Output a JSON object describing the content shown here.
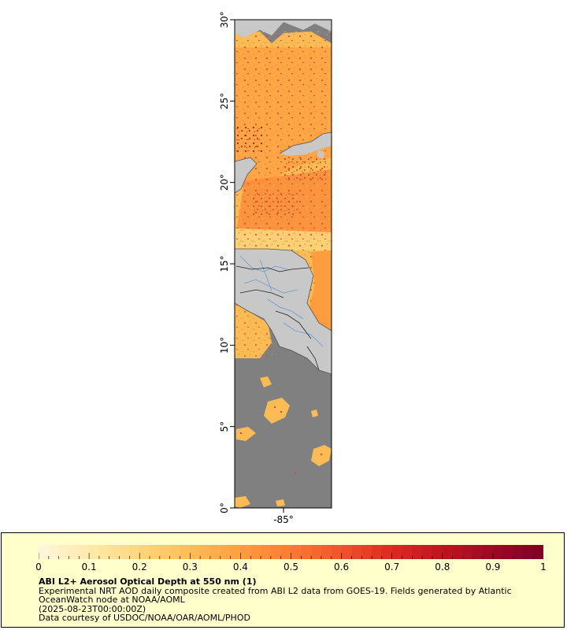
{
  "map": {
    "lat_ticks": [
      "0°",
      "5°",
      "10°",
      "15°",
      "20°",
      "25°",
      "30°"
    ],
    "lon_tick": "-85°",
    "lat_range": [
      0,
      30
    ],
    "colors": {
      "land": "#c8c8c8",
      "no_data": "#808080",
      "coast": "#555555",
      "river": "#6a9ad6",
      "border": "#000000"
    }
  },
  "colorbar": {
    "labels": [
      "0",
      "0.1",
      "0.2",
      "0.3",
      "0.4",
      "0.5",
      "0.6",
      "0.7",
      "0.8",
      "0.9",
      "1"
    ],
    "range": [
      0,
      1
    ],
    "colors": [
      "#fff5d8",
      "#ffe9a8",
      "#fed47a",
      "#fdbb55",
      "#fd9d40",
      "#fb7a33",
      "#f1542a",
      "#de2a22",
      "#c11521",
      "#a00a23",
      "#800026"
    ]
  },
  "caption": {
    "title": "ABI L2+ Aerosol Optical Depth at 550 nm (1)",
    "line1": "Experimental NRT AOD daily composite created from ABI L2 data from GOES-19. Fields generated by Atlantic",
    "line2": "OceanWatch node at NOAA/AOML",
    "line3": "(2025-08-23T00:00:00Z)",
    "line4": "Data courtesy of USDOC/NOAA/OAR/AOML/PHOD"
  }
}
